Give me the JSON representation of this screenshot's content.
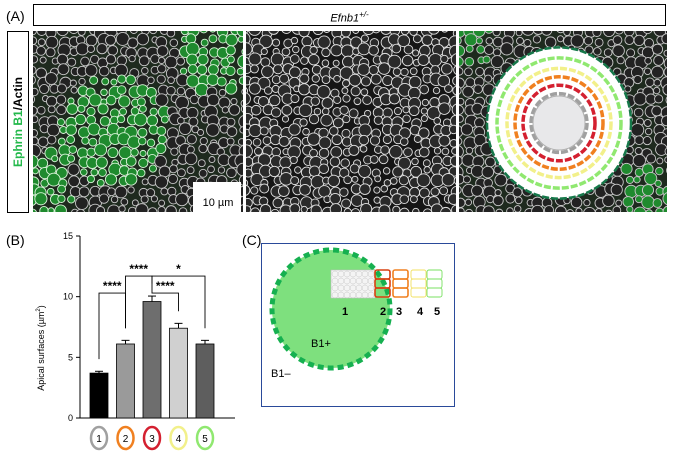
{
  "panel_a": {
    "label": "(A)",
    "genotype_base": "Efnb1",
    "genotype_sup": "+/-",
    "stain_green": "Ephrin B1",
    "stain_white": "/Actin",
    "scalebar_text": "10 µm"
  },
  "panel_b": {
    "label": "(B)",
    "ylabel_main": "Apical surfaces (µm",
    "ylabel_sup": "2",
    "ylabel_end": ")",
    "significance": [
      "****",
      "****",
      "****",
      "*"
    ]
  },
  "panel_c": {
    "label": "(C)",
    "inside_label": "B1+",
    "outside_label": "B1–",
    "zone_numbers": [
      "1",
      "2",
      "3",
      "4",
      "5"
    ]
  },
  "colors": {
    "ephrin_green": "#22c55e",
    "ring2_orange": "#f08020",
    "ring3_red": "#d42030",
    "ring4_yellow": "#f2f08a",
    "ring5_lightgreen": "#90e870",
    "ring1_gray": "#a0a0a0",
    "panel_c_border": "#2a4a9a",
    "disk_green": "#7ee07e",
    "dash_green": "#16b050"
  },
  "chart_data": {
    "type": "bar",
    "categories": [
      "1",
      "2",
      "3",
      "4",
      "5"
    ],
    "values": [
      3.7,
      6.1,
      9.6,
      7.4,
      6.1
    ],
    "errors": [
      0.15,
      0.3,
      0.45,
      0.4,
      0.3
    ],
    "bar_colors": [
      "#000000",
      "#9a9a9a",
      "#6e6e6e",
      "#d0d0d0",
      "#5e5e5e"
    ],
    "category_ring_colors": [
      "#a0a0a0",
      "#f08020",
      "#d42030",
      "#f2f08a",
      "#90e870"
    ],
    "ylim": [
      0,
      15
    ],
    "yticks": [
      0,
      5,
      10,
      15
    ],
    "ylabel": "Apical surfaces (µm²)",
    "comparisons": [
      {
        "from": "1",
        "to": "2",
        "label": "****"
      },
      {
        "from": "2",
        "to": "3",
        "label": "****"
      },
      {
        "from": "3",
        "to": "4",
        "label": "****"
      },
      {
        "from": "3",
        "to": "5",
        "label": "*"
      }
    ]
  }
}
